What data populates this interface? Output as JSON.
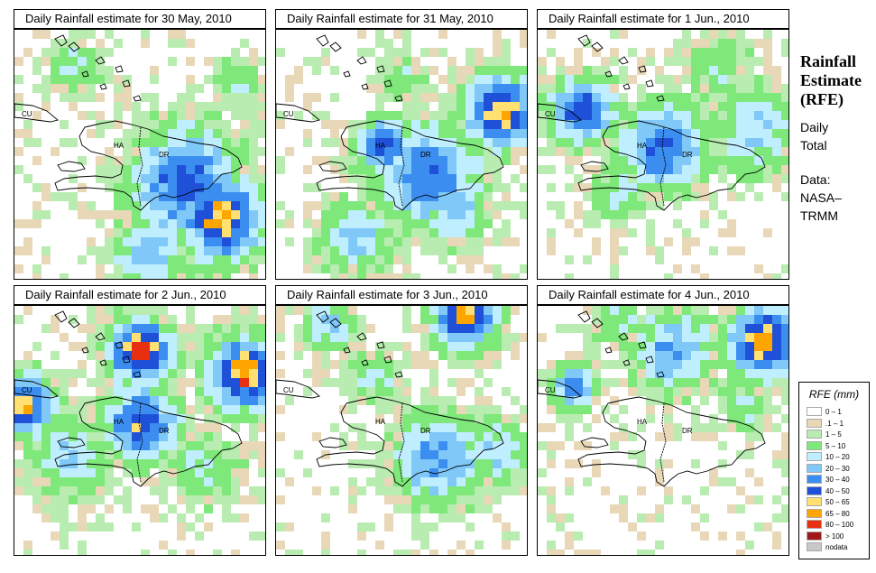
{
  "panels": [
    {
      "title": "Daily Rainfall estimate for  30 May, 2010"
    },
    {
      "title": "Daily Rainfall estimate for  31 May, 2010"
    },
    {
      "title": "Daily Rainfall estimate for  1 Jun., 2010"
    },
    {
      "title": "Daily Rainfall estimate for  2 Jun., 2010"
    },
    {
      "title": "Daily Rainfall estimate for  3 Jun., 2010"
    },
    {
      "title": "Daily Rainfall estimate for  4 Jun., 2010"
    }
  ],
  "map_labels": {
    "cu": "CU",
    "ha": "HA",
    "dr": "DR"
  },
  "sidebar": {
    "title_line1": "Rainfall",
    "title_line2": "Estimate",
    "title_line3": "(RFE)",
    "daily_line1": "Daily",
    "daily_line2": "Total",
    "data_line1": "Data:",
    "data_line2": "NASA–",
    "data_line3": "TRMM"
  },
  "legend": {
    "title": "RFE (mm)",
    "items": [
      {
        "label": "0 – 1",
        "color": "#ffffff"
      },
      {
        "label": ".1 – 1",
        "color": "#e8d8b8"
      },
      {
        "label": "1 – 5",
        "color": "#b8ecb0"
      },
      {
        "label": "5 – 10",
        "color": "#7ee87a"
      },
      {
        "label": "10 – 20",
        "color": "#bfeeff"
      },
      {
        "label": "20 – 30",
        "color": "#7fc8f8"
      },
      {
        "label": "30 – 40",
        "color": "#3b8ef0"
      },
      {
        "label": "40 – 50",
        "color": "#1f50d8"
      },
      {
        "label": "50 – 65",
        "color": "#ffe070"
      },
      {
        "label": "65 – 80",
        "color": "#ffa500"
      },
      {
        "label": "80 – 100",
        "color": "#e83010"
      },
      {
        "label": "> 100",
        "color": "#a01818"
      },
      {
        "label": "nodata",
        "color": "#c8c8c8"
      }
    ]
  }
}
